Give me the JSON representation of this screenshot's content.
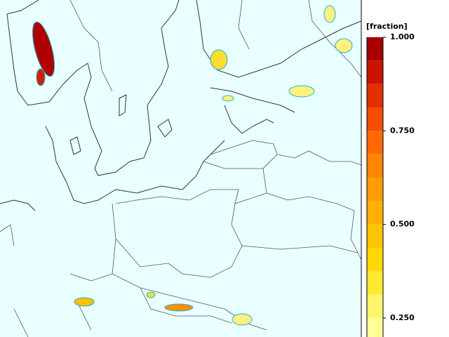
{
  "colorbar": {
    "label": "[fraction]",
    "ticks": [
      {
        "value": 1,
        "label": "1.000"
      },
      {
        "value": 0.75,
        "label": "0.750"
      },
      {
        "value": 0.5,
        "label": "0.500"
      },
      {
        "value": 0.25,
        "label": "0.250"
      }
    ],
    "levels": [
      1,
      0.9375,
      0.875,
      0.8125,
      0.75,
      0.6875,
      0.625,
      0.5625,
      0.5,
      0.4375,
      0.375,
      0.3125,
      0.25,
      0.1875
    ],
    "colors": [
      "#a80000",
      "#c81400",
      "#e03000",
      "#f44c00",
      "#ff6a00",
      "#ff8400",
      "#ff9c00",
      "#ffb000",
      "#ffc400",
      "#ffd800",
      "#ffe830",
      "#fff46a",
      "#ffff9a"
    ]
  }
}
